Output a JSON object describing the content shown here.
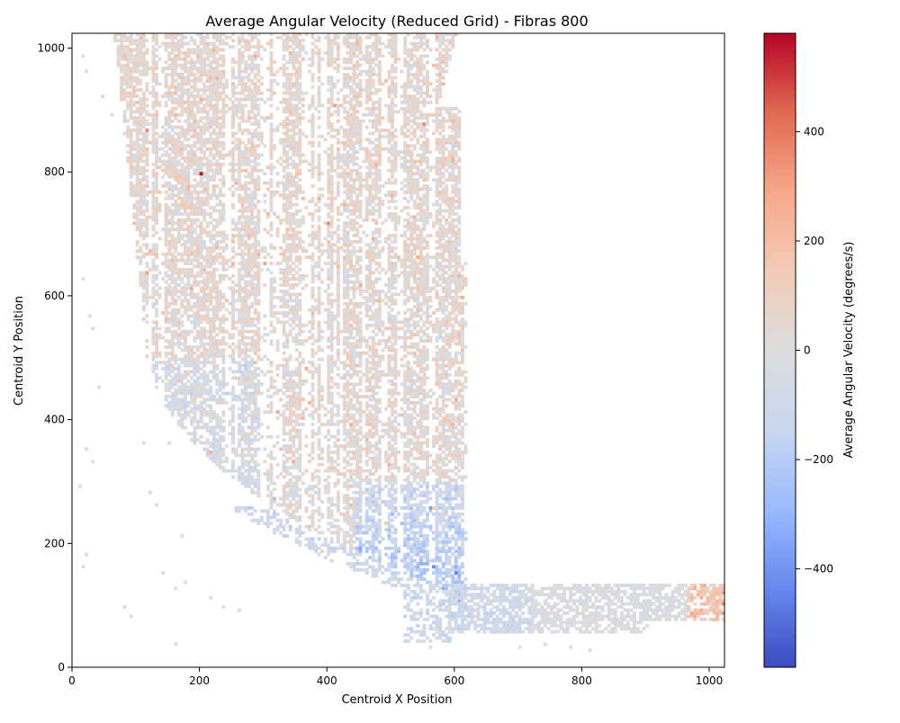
{
  "chart_data": {
    "type": "heatmap",
    "title": "Average Angular Velocity (Reduced Grid) - Fibras 800",
    "xlabel": "Centroid X Position",
    "ylabel": "Centroid Y Position",
    "xlim": [
      0,
      1024
    ],
    "ylim": [
      0,
      1024
    ],
    "x_ticks": [
      0,
      200,
      400,
      600,
      800,
      1000
    ],
    "y_ticks": [
      0,
      200,
      400,
      600,
      800,
      1000
    ],
    "grid": false,
    "cell_size": 5,
    "colormap": "coolwarm",
    "colorbar": {
      "label": "Average Angular Velocity (degrees/s)",
      "vmin": -580,
      "vmax": 580,
      "ticks": [
        -400,
        -200,
        0,
        200,
        400
      ],
      "colors": [
        "#3b4cc0",
        "#6788ee",
        "#9abbff",
        "#c9d7f0",
        "#dddddd",
        "#f2cbb7",
        "#f7a889",
        "#e26952",
        "#b40426"
      ]
    },
    "highlights": [
      {
        "x": 200,
        "y": 795,
        "value": 560
      },
      {
        "x": 1020,
        "y": 118,
        "value": 330
      },
      {
        "x": 1020,
        "y": 100,
        "value": 360
      },
      {
        "x": 1020,
        "y": 85,
        "value": 340
      },
      {
        "x": 565,
        "y": 160,
        "value": -420
      },
      {
        "x": 600,
        "y": 150,
        "value": -450
      }
    ]
  }
}
